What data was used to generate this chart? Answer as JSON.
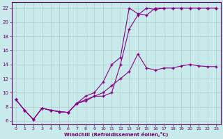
{
  "xlabel": "Windchill (Refroidissement éolien,°C)",
  "background_color": "#c8eaea",
  "grid_color": "#b0cccc",
  "line_color": "#880088",
  "xlim": [
    -0.5,
    23.5
  ],
  "ylim": [
    5.5,
    22.8
  ],
  "yticks": [
    6,
    8,
    10,
    12,
    14,
    16,
    18,
    20,
    22
  ],
  "xticks": [
    0,
    1,
    2,
    3,
    4,
    5,
    6,
    7,
    8,
    9,
    10,
    11,
    12,
    13,
    14,
    15,
    16,
    17,
    18,
    19,
    20,
    21,
    22,
    23
  ],
  "line1_x": [
    0,
    1,
    2,
    3,
    4,
    5,
    6,
    7,
    8,
    9,
    10,
    11,
    12,
    13,
    14,
    15,
    16,
    17,
    18,
    19,
    20,
    21,
    22,
    23
  ],
  "line1_y": [
    9.0,
    7.5,
    6.2,
    7.8,
    7.5,
    7.3,
    7.2,
    8.5,
    8.8,
    9.5,
    9.5,
    10.0,
    14.0,
    19.0,
    21.0,
    22.0,
    21.8,
    22.0,
    22.0,
    22.0,
    22.0,
    22.0,
    22.0,
    22.0
  ],
  "line2_x": [
    0,
    1,
    2,
    3,
    4,
    5,
    6,
    7,
    8,
    9,
    10,
    11,
    12,
    13,
    14,
    15,
    16,
    17,
    18,
    19,
    20,
    21,
    22,
    23
  ],
  "line2_y": [
    9.0,
    7.5,
    6.2,
    7.8,
    7.5,
    7.3,
    7.2,
    8.5,
    9.5,
    10.0,
    11.5,
    14.0,
    15.0,
    22.0,
    21.2,
    21.0,
    22.0,
    22.0,
    22.0,
    22.0,
    22.0,
    22.0,
    22.0,
    22.0
  ],
  "line3_x": [
    0,
    1,
    2,
    3,
    4,
    5,
    6,
    7,
    8,
    9,
    10,
    11,
    12,
    13,
    14,
    15,
    16,
    17,
    18,
    19,
    20,
    21,
    22,
    23
  ],
  "line3_y": [
    9.0,
    7.5,
    6.2,
    7.8,
    7.5,
    7.3,
    7.2,
    8.5,
    9.0,
    9.5,
    10.0,
    11.0,
    12.0,
    13.0,
    15.5,
    13.5,
    13.2,
    13.5,
    13.5,
    13.8,
    14.0,
    13.8,
    13.7,
    13.7
  ]
}
